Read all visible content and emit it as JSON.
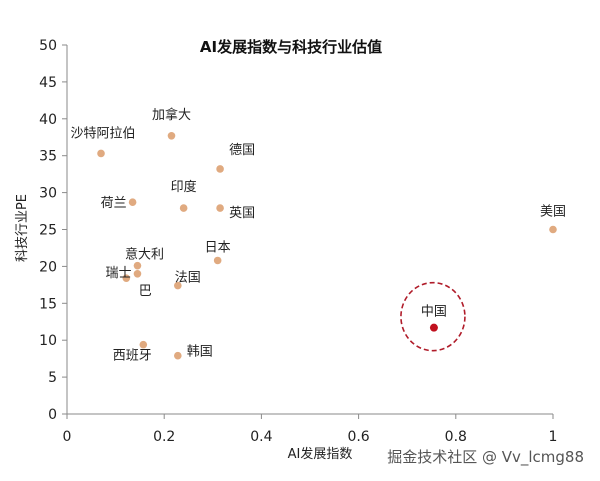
{
  "chart_data": {
    "type": "scatter",
    "title": "AI发展指数与科技行业估值",
    "xlabel": "AI发展指数",
    "ylabel": "科技行业PE",
    "xlim": [
      0,
      1
    ],
    "ylim": [
      0,
      50
    ],
    "xticks": [
      "0",
      "0.2",
      "0.4",
      "0.6",
      "0.8",
      "1"
    ],
    "yticks": [
      "0",
      "5",
      "10",
      "15",
      "20",
      "25",
      "30",
      "35",
      "40",
      "45",
      "50"
    ],
    "grid": false,
    "colors": {
      "point": "#e0aa80",
      "highlight": "#c0101e",
      "ring": "#b01c2a"
    },
    "points": [
      {
        "label": "沙特阿拉伯",
        "x": 0.07,
        "y": 35.3
      },
      {
        "label": "加拿大",
        "x": 0.215,
        "y": 37.7
      },
      {
        "label": "德国",
        "x": 0.315,
        "y": 33.2
      },
      {
        "label": "印度",
        "x": 0.24,
        "y": 27.9
      },
      {
        "label": "荷兰",
        "x": 0.135,
        "y": 28.7
      },
      {
        "label": "英国",
        "x": 0.315,
        "y": 27.9
      },
      {
        "label": "美国",
        "x": 1.0,
        "y": 25.0
      },
      {
        "label": "意大利",
        "x": 0.145,
        "y": 20.1
      },
      {
        "label": "日本",
        "x": 0.31,
        "y": 20.8
      },
      {
        "label": "瑞士",
        "x": 0.145,
        "y": 19.0
      },
      {
        "label": "巴",
        "x": 0.122,
        "y": 18.4
      },
      {
        "label": "法国",
        "x": 0.228,
        "y": 17.4
      },
      {
        "label": "西班牙",
        "x": 0.157,
        "y": 9.4
      },
      {
        "label": "韩国",
        "x": 0.228,
        "y": 7.9
      },
      {
        "label": "中国",
        "x": 0.755,
        "y": 11.7,
        "highlight": true
      }
    ]
  },
  "watermark": "掘金技术社区 @ Vv_lcmg88"
}
